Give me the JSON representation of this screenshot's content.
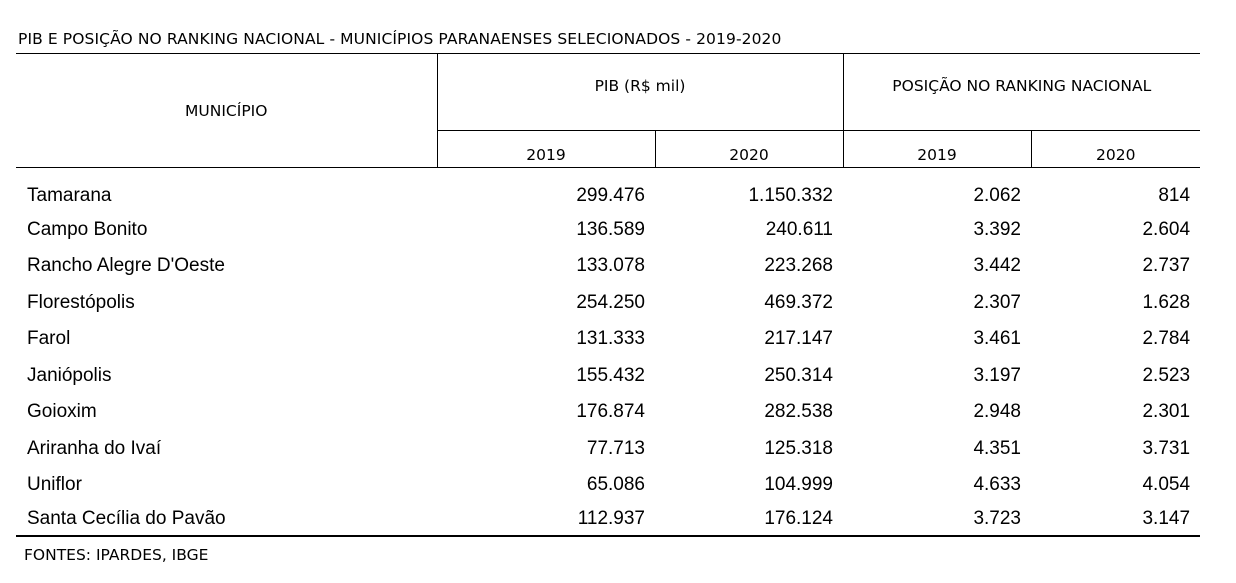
{
  "title": "PIB E POSIÇÃO NO RANKING NACIONAL - MUNICÍPIOS PARANAENSES SELECIONADOS - 2019-2020",
  "header": {
    "municipio": "MUNICÍPIO",
    "pib_group": "PIB (R$ mil)",
    "rank_group": "POSIÇÃO NO RANKING NACIONAL",
    "pib_2019": "2019",
    "pib_2020": "2020",
    "rank_2019": "2019",
    "rank_2020": "2020"
  },
  "rows": [
    {
      "municipio": "Tamarana",
      "pib_2019": "299.476",
      "pib_2020": "1.150.332",
      "rank_2019": "2.062",
      "rank_2020": "814"
    },
    {
      "municipio": "Campo Bonito",
      "pib_2019": "136.589",
      "pib_2020": "240.611",
      "rank_2019": "3.392",
      "rank_2020": "2.604"
    },
    {
      "municipio": "Rancho Alegre D'Oeste",
      "pib_2019": "133.078",
      "pib_2020": "223.268",
      "rank_2019": "3.442",
      "rank_2020": "2.737"
    },
    {
      "municipio": "Florestópolis",
      "pib_2019": "254.250",
      "pib_2020": "469.372",
      "rank_2019": "2.307",
      "rank_2020": "1.628"
    },
    {
      "municipio": "Farol",
      "pib_2019": "131.333",
      "pib_2020": "217.147",
      "rank_2019": "3.461",
      "rank_2020": "2.784"
    },
    {
      "municipio": "Janiópolis",
      "pib_2019": "155.432",
      "pib_2020": "250.314",
      "rank_2019": "3.197",
      "rank_2020": "2.523"
    },
    {
      "municipio": "Goioxim",
      "pib_2019": "176.874",
      "pib_2020": "282.538",
      "rank_2019": "2.948",
      "rank_2020": "2.301"
    },
    {
      "municipio": "Ariranha do Ivaí",
      "pib_2019": "77.713",
      "pib_2020": "125.318",
      "rank_2019": "4.351",
      "rank_2020": "3.731"
    },
    {
      "municipio": "Uniflor",
      "pib_2019": "65.086",
      "pib_2020": "104.999",
      "rank_2019": "4.633",
      "rank_2020": "4.054"
    },
    {
      "municipio": "Santa Cecília do Pavão",
      "pib_2019": "112.937",
      "pib_2020": "176.124",
      "rank_2019": "3.723",
      "rank_2020": "3.147"
    }
  ],
  "source": "FONTES: IPARDES, IBGE"
}
